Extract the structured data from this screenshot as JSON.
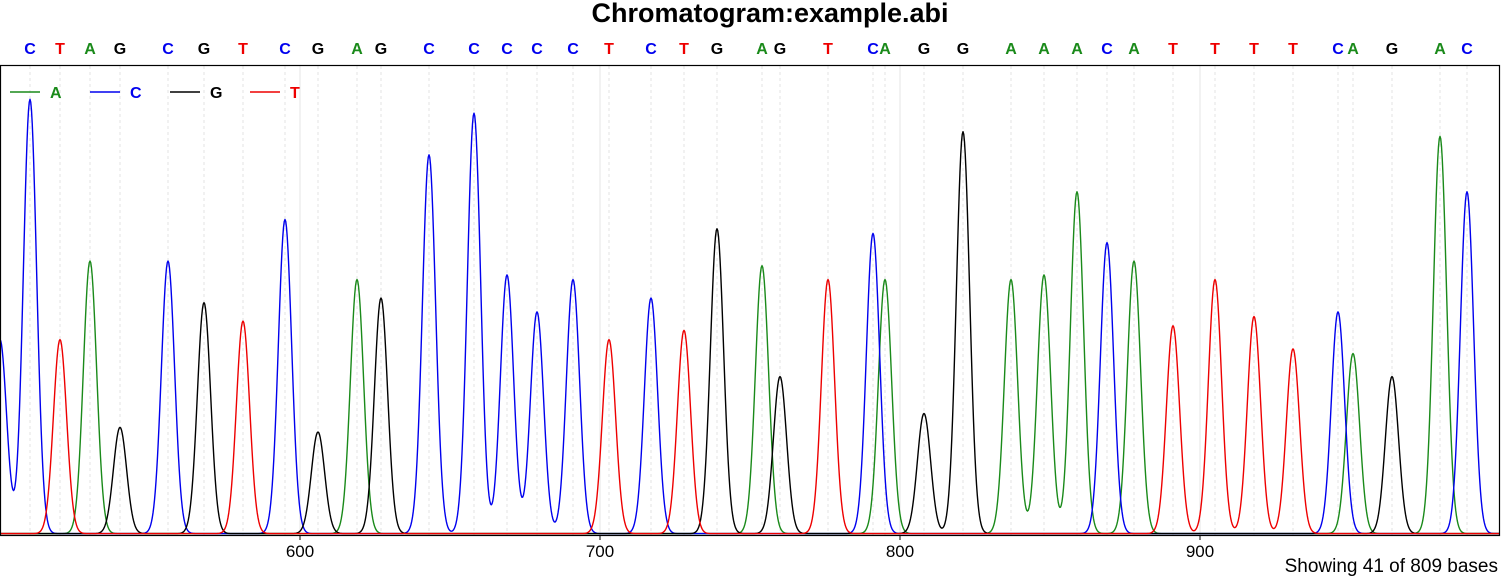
{
  "chart_data": {
    "type": "line",
    "title": "Chromatogram:example.abi",
    "footer": "Showing 41 of 809 bases",
    "xlim": [
      500,
      1000
    ],
    "x_ticks": [
      600,
      700,
      800,
      900
    ],
    "x_tick_labels": [
      "600",
      "700",
      "800",
      "900"
    ],
    "grid": true,
    "legend_position": "top-left",
    "colors": {
      "A": "#1a8a1a",
      "C": "#0000ee",
      "G": "#000000",
      "T": "#ee0000"
    },
    "series": [
      {
        "name": "A",
        "color": "#1a8a1a"
      },
      {
        "name": "C",
        "color": "#0000ee"
      },
      {
        "name": "G",
        "color": "#000000"
      },
      {
        "name": "T",
        "color": "#ee0000"
      }
    ],
    "bases": [
      {
        "base": "C",
        "x": 510
      },
      {
        "base": "T",
        "x": 520
      },
      {
        "base": "A",
        "x": 530
      },
      {
        "base": "G",
        "x": 540
      },
      {
        "base": "C",
        "x": 556
      },
      {
        "base": "G",
        "x": 568
      },
      {
        "base": "T",
        "x": 581
      },
      {
        "base": "C",
        "x": 595
      },
      {
        "base": "G",
        "x": 606
      },
      {
        "base": "A",
        "x": 619
      },
      {
        "base": "G",
        "x": 627
      },
      {
        "base": "C",
        "x": 643
      },
      {
        "base": "C",
        "x": 658
      },
      {
        "base": "C",
        "x": 669
      },
      {
        "base": "C",
        "x": 679
      },
      {
        "base": "C",
        "x": 691
      },
      {
        "base": "T",
        "x": 703
      },
      {
        "base": "C",
        "x": 717
      },
      {
        "base": "T",
        "x": 728
      },
      {
        "base": "G",
        "x": 739
      },
      {
        "base": "A",
        "x": 754
      },
      {
        "base": "G",
        "x": 760
      },
      {
        "base": "T",
        "x": 776
      },
      {
        "base": "C",
        "x": 791
      },
      {
        "base": "A",
        "x": 795
      },
      {
        "base": "G",
        "x": 808
      },
      {
        "base": "G",
        "x": 821
      },
      {
        "base": "A",
        "x": 837
      },
      {
        "base": "A",
        "x": 848
      },
      {
        "base": "A",
        "x": 859
      },
      {
        "base": "C",
        "x": 869
      },
      {
        "base": "A",
        "x": 878
      },
      {
        "base": "T",
        "x": 891
      },
      {
        "base": "T",
        "x": 905
      },
      {
        "base": "T",
        "x": 918
      },
      {
        "base": "T",
        "x": 931
      },
      {
        "base": "C",
        "x": 946
      },
      {
        "base": "A",
        "x": 951
      },
      {
        "base": "G",
        "x": 964
      },
      {
        "base": "A",
        "x": 980
      },
      {
        "base": "C",
        "x": 989
      }
    ],
    "peaks": [
      {
        "base": "C",
        "x": 500,
        "height": 0.42,
        "width": 2.2
      },
      {
        "base": "C",
        "x": 510,
        "height": 0.94,
        "width": 2.2
      },
      {
        "base": "T",
        "x": 520,
        "height": 0.42,
        "width": 2.2
      },
      {
        "base": "A",
        "x": 530,
        "height": 0.59,
        "width": 2.2
      },
      {
        "base": "G",
        "x": 540,
        "height": 0.23,
        "width": 2.2
      },
      {
        "base": "C",
        "x": 556,
        "height": 0.59,
        "width": 2.2
      },
      {
        "base": "G",
        "x": 568,
        "height": 0.5,
        "width": 2.2
      },
      {
        "base": "T",
        "x": 581,
        "height": 0.46,
        "width": 2.2
      },
      {
        "base": "C",
        "x": 595,
        "height": 0.68,
        "width": 2.2
      },
      {
        "base": "G",
        "x": 606,
        "height": 0.22,
        "width": 2.2
      },
      {
        "base": "A",
        "x": 619,
        "height": 0.55,
        "width": 2.2
      },
      {
        "base": "G",
        "x": 627,
        "height": 0.51,
        "width": 2.2
      },
      {
        "base": "C",
        "x": 643,
        "height": 0.82,
        "width": 2.2
      },
      {
        "base": "C",
        "x": 658,
        "height": 0.91,
        "width": 2.2
      },
      {
        "base": "C",
        "x": 669,
        "height": 0.56,
        "width": 2.2
      },
      {
        "base": "C",
        "x": 679,
        "height": 0.48,
        "width": 2.2
      },
      {
        "base": "C",
        "x": 691,
        "height": 0.55,
        "width": 2.2
      },
      {
        "base": "T",
        "x": 703,
        "height": 0.42,
        "width": 2.2
      },
      {
        "base": "C",
        "x": 717,
        "height": 0.51,
        "width": 2.2
      },
      {
        "base": "T",
        "x": 728,
        "height": 0.44,
        "width": 2.2
      },
      {
        "base": "G",
        "x": 739,
        "height": 0.66,
        "width": 2.2
      },
      {
        "base": "A",
        "x": 754,
        "height": 0.58,
        "width": 2.2
      },
      {
        "base": "G",
        "x": 760,
        "height": 0.34,
        "width": 2.2
      },
      {
        "base": "T",
        "x": 776,
        "height": 0.55,
        "width": 2.2
      },
      {
        "base": "C",
        "x": 791,
        "height": 0.65,
        "width": 2.2
      },
      {
        "base": "A",
        "x": 795,
        "height": 0.55,
        "width": 2.2
      },
      {
        "base": "G",
        "x": 808,
        "height": 0.26,
        "width": 2.2
      },
      {
        "base": "G",
        "x": 821,
        "height": 0.87,
        "width": 2.2
      },
      {
        "base": "A",
        "x": 837,
        "height": 0.55,
        "width": 2.2
      },
      {
        "base": "A",
        "x": 848,
        "height": 0.56,
        "width": 2.2
      },
      {
        "base": "A",
        "x": 859,
        "height": 0.74,
        "width": 2.2
      },
      {
        "base": "C",
        "x": 869,
        "height": 0.63,
        "width": 2.2
      },
      {
        "base": "A",
        "x": 878,
        "height": 0.59,
        "width": 2.2
      },
      {
        "base": "T",
        "x": 891,
        "height": 0.45,
        "width": 2.2
      },
      {
        "base": "T",
        "x": 905,
        "height": 0.55,
        "width": 2.2
      },
      {
        "base": "T",
        "x": 918,
        "height": 0.47,
        "width": 2.2
      },
      {
        "base": "T",
        "x": 931,
        "height": 0.4,
        "width": 2.2
      },
      {
        "base": "C",
        "x": 946,
        "height": 0.48,
        "width": 2.2
      },
      {
        "base": "A",
        "x": 951,
        "height": 0.39,
        "width": 2.2
      },
      {
        "base": "G",
        "x": 964,
        "height": 0.34,
        "width": 2.2
      },
      {
        "base": "A",
        "x": 980,
        "height": 0.86,
        "width": 2.2
      },
      {
        "base": "C",
        "x": 989,
        "height": 0.74,
        "width": 2.2
      }
    ]
  }
}
